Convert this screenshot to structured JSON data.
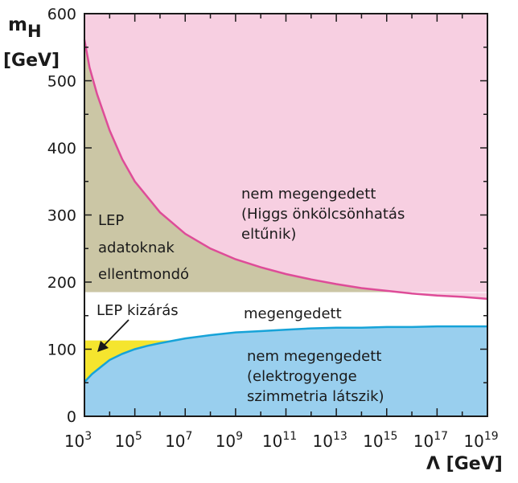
{
  "chart_data": {
    "type": "area",
    "title": "",
    "y_axis": {
      "label_main": "m",
      "label_sub": "H",
      "unit": "[GeV]",
      "range": [
        0,
        600
      ],
      "ticks": [
        0,
        100,
        200,
        300,
        400,
        500,
        600
      ]
    },
    "x_axis": {
      "label": "Λ  [GeV]",
      "scale": "log",
      "range_log10": [
        3,
        19
      ],
      "ticks": [
        {
          "base": "10",
          "exp": "3",
          "value_log10": 3
        },
        {
          "base": "10",
          "exp": "5",
          "value_log10": 5
        },
        {
          "base": "10",
          "exp": "7",
          "value_log10": 7
        },
        {
          "base": "10",
          "exp": "9",
          "value_log10": 9
        },
        {
          "base": "10",
          "exp": "11",
          "value_log10": 11
        },
        {
          "base": "10",
          "exp": "13",
          "value_log10": 13
        },
        {
          "base": "10",
          "exp": "15",
          "value_log10": 15
        },
        {
          "base": "10",
          "exp": "17",
          "value_log10": 17
        },
        {
          "base": "10",
          "exp": "19",
          "value_log10": 19
        }
      ]
    },
    "lep_bound": 185,
    "lep_lower_bound": 113,
    "series": [
      {
        "id": "upper-bound",
        "color": "#de4c98",
        "points": [
          [
            3,
            561
          ],
          [
            3.2,
            520
          ],
          [
            3.5,
            480
          ],
          [
            4,
            426
          ],
          [
            4.5,
            383
          ],
          [
            5,
            350
          ],
          [
            6,
            304
          ],
          [
            7,
            272
          ],
          [
            8,
            250
          ],
          [
            9,
            234
          ],
          [
            10,
            222
          ],
          [
            11,
            212
          ],
          [
            12,
            204
          ],
          [
            13,
            197
          ],
          [
            14,
            191
          ],
          [
            15,
            187
          ],
          [
            16,
            183
          ],
          [
            17,
            180
          ],
          [
            18,
            178
          ],
          [
            19,
            175
          ]
        ]
      },
      {
        "id": "lower-bound",
        "color": "#16a3d8",
        "points": [
          [
            3,
            51
          ],
          [
            3.3,
            63
          ],
          [
            3.7,
            75
          ],
          [
            4,
            84
          ],
          [
            4.5,
            93
          ],
          [
            5,
            100
          ],
          [
            5.5,
            105
          ],
          [
            6,
            109
          ],
          [
            7,
            116
          ],
          [
            8,
            121
          ],
          [
            9,
            125
          ],
          [
            10,
            127
          ],
          [
            11,
            129
          ],
          [
            12,
            131
          ],
          [
            13,
            132
          ],
          [
            14,
            132
          ],
          [
            15,
            133
          ],
          [
            16,
            133
          ],
          [
            17,
            134
          ],
          [
            18,
            134
          ],
          [
            19,
            134
          ]
        ]
      }
    ],
    "regions": {
      "forbidden_upper": {
        "color": "#f7cfe1",
        "lines": [
          "nem megengedett",
          "(Higgs önkölcsönhatás",
          "eltűnik)"
        ]
      },
      "lep_contradict": {
        "color": "#cbc6a5",
        "lines": [
          "LEP",
          "adatoknak",
          "ellentmondó"
        ]
      },
      "allowed": {
        "color": "#ffffff",
        "text": "megengedett"
      },
      "forbidden_lower": {
        "color": "#99cfee",
        "lines": [
          "nem megengedett",
          "(elektrogyenge",
          "szimmetria látszik)"
        ]
      },
      "lep_exclusion": {
        "color": "#f5e52e",
        "label": "LEP kizárás"
      }
    }
  }
}
